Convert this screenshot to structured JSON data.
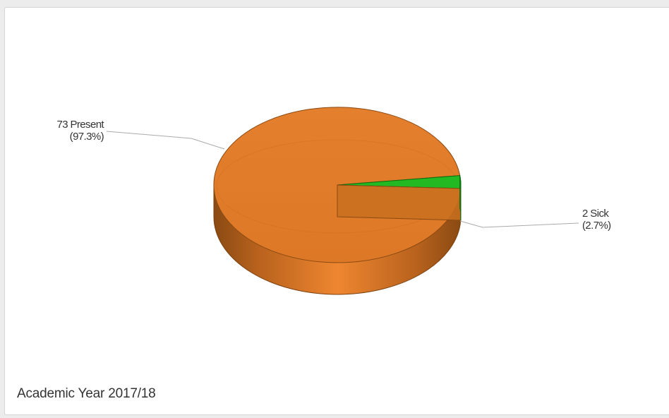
{
  "chart_data": {
    "type": "pie",
    "style": "3d",
    "slices": [
      {
        "name": "Present",
        "value": 73,
        "percent": "97.3%",
        "color": "#e07b2a",
        "label_line1": "73 Present",
        "label_line2": "(97.3%)"
      },
      {
        "name": "Sick",
        "value": 2,
        "percent": "2.7%",
        "color": "#22b922",
        "label_line1": "2 Sick",
        "label_line2": "(2.7%)"
      }
    ],
    "footer_title": "Academic Year 2017/18"
  }
}
